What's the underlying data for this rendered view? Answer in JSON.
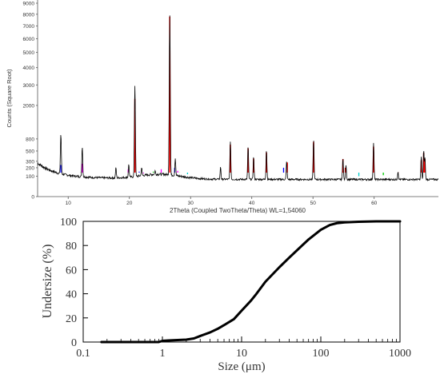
{
  "chart_data": [
    {
      "type": "line",
      "title": "",
      "xlabel": "2Theta (Coupled TwoTheta/Theta) WL=1,54060",
      "ylabel": "Counts (Square Root)",
      "y_scale": "sqrt",
      "xlim": [
        5.0,
        70.5
      ],
      "ylim": [
        0,
        9300
      ],
      "x_ticks": [
        "10",
        "20",
        "30",
        "40",
        "50",
        "60"
      ],
      "y_ticks": [
        "0",
        "100",
        "200",
        "300",
        "500",
        "800",
        "2000",
        "3000",
        "4000",
        "5000",
        "6000",
        "7000",
        "8000",
        "9000"
      ],
      "grid": false,
      "legend": "none",
      "series": [
        {
          "role": "measured pattern",
          "color": "#000000",
          "peaks": [
            {
              "x": 8.8,
              "y": 950
            },
            {
              "x": 12.3,
              "y": 600
            },
            {
              "x": 17.8,
              "y": 200
            },
            {
              "x": 19.9,
              "y": 250
            },
            {
              "x": 20.9,
              "y": 2950
            },
            {
              "x": 22.0,
              "y": 200
            },
            {
              "x": 24.2,
              "y": 160
            },
            {
              "x": 26.6,
              "y": 7900
            },
            {
              "x": 27.5,
              "y": 350
            },
            {
              "x": 34.9,
              "y": 210
            },
            {
              "x": 36.5,
              "y": 720
            },
            {
              "x": 39.4,
              "y": 600
            },
            {
              "x": 40.3,
              "y": 380
            },
            {
              "x": 42.4,
              "y": 520
            },
            {
              "x": 45.7,
              "y": 300
            },
            {
              "x": 50.1,
              "y": 780
            },
            {
              "x": 54.9,
              "y": 360
            },
            {
              "x": 55.4,
              "y": 240
            },
            {
              "x": 59.9,
              "y": 690
            },
            {
              "x": 63.9,
              "y": 150
            },
            {
              "x": 67.7,
              "y": 380
            },
            {
              "x": 68.1,
              "y": 520
            },
            {
              "x": 68.3,
              "y": 360
            }
          ]
        },
        {
          "role": "reference phase sticks",
          "color": "#ff0000",
          "sticks": [
            {
              "x": 20.9,
              "y": 2300
            },
            {
              "x": 26.6,
              "y": 7800
            },
            {
              "x": 36.5,
              "y": 650
            },
            {
              "x": 39.4,
              "y": 560
            },
            {
              "x": 40.3,
              "y": 350
            },
            {
              "x": 42.4,
              "y": 470
            },
            {
              "x": 45.8,
              "y": 280
            },
            {
              "x": 50.1,
              "y": 720
            },
            {
              "x": 54.9,
              "y": 340
            },
            {
              "x": 55.3,
              "y": 200
            },
            {
              "x": 59.9,
              "y": 600
            },
            {
              "x": 64.0,
              "y": 140
            },
            {
              "x": 67.7,
              "y": 320
            },
            {
              "x": 68.1,
              "y": 460
            },
            {
              "x": 68.3,
              "y": 340
            }
          ]
        },
        {
          "role": "minor phase",
          "color": "#ff00ff",
          "sticks": [
            {
              "x": 12.3,
              "y": 260
            },
            {
              "x": 19.8,
              "y": 180
            },
            {
              "x": 22.3,
              "y": 130
            },
            {
              "x": 25.2,
              "y": 180
            },
            {
              "x": 27.9,
              "y": 160
            }
          ]
        },
        {
          "role": "minor phase",
          "color": "#0000ff",
          "sticks": [
            {
              "x": 8.8,
              "y": 240
            },
            {
              "x": 21.6,
              "y": 150
            },
            {
              "x": 27.4,
              "y": 200
            },
            {
              "x": 45.2,
              "y": 200
            }
          ]
        },
        {
          "role": "minor phase",
          "color": "#00cc00",
          "sticks": [
            {
              "x": 12.0,
              "y": 140
            },
            {
              "x": 23.9,
              "y": 150
            },
            {
              "x": 28.2,
              "y": 140
            },
            {
              "x": 61.5,
              "y": 110
            }
          ]
        },
        {
          "role": "minor phase",
          "color": "#00cccc",
          "sticks": [
            {
              "x": 17.7,
              "y": 140
            },
            {
              "x": 29.5,
              "y": 120
            },
            {
              "x": 57.5,
              "y": 100
            }
          ]
        }
      ]
    },
    {
      "type": "line",
      "title": "",
      "xlabel": "Size (μm)",
      "ylabel": "Undersize (%)",
      "x_scale": "log",
      "xlim": [
        0.1,
        1000
      ],
      "ylim": [
        0,
        100
      ],
      "x_ticks": [
        "0.1",
        "1",
        "10",
        "100",
        "1000"
      ],
      "y_ticks": [
        "0",
        "20",
        "40",
        "60",
        "80",
        "100"
      ],
      "grid": false,
      "legend": "none",
      "series": [
        {
          "color": "#000000",
          "x": [
            0.17,
            0.5,
            0.9,
            1.0,
            1.2,
            2.0,
            2.5,
            3.0,
            4.0,
            5.0,
            6.0,
            8.0,
            10.0,
            13.0,
            15.0,
            20.0,
            30.0,
            40.0,
            50.0,
            70.0,
            100.0,
            130.0,
            160.0,
            200.0,
            300.0,
            500.0,
            1000.0
          ],
          "y": [
            0,
            0,
            0,
            1,
            1.3,
            2,
            3,
            5,
            8,
            11,
            14,
            19,
            26,
            34,
            39,
            50,
            62,
            70,
            76,
            85,
            93,
            97,
            98.5,
            99.2,
            99.7,
            100,
            100
          ]
        }
      ]
    }
  ]
}
